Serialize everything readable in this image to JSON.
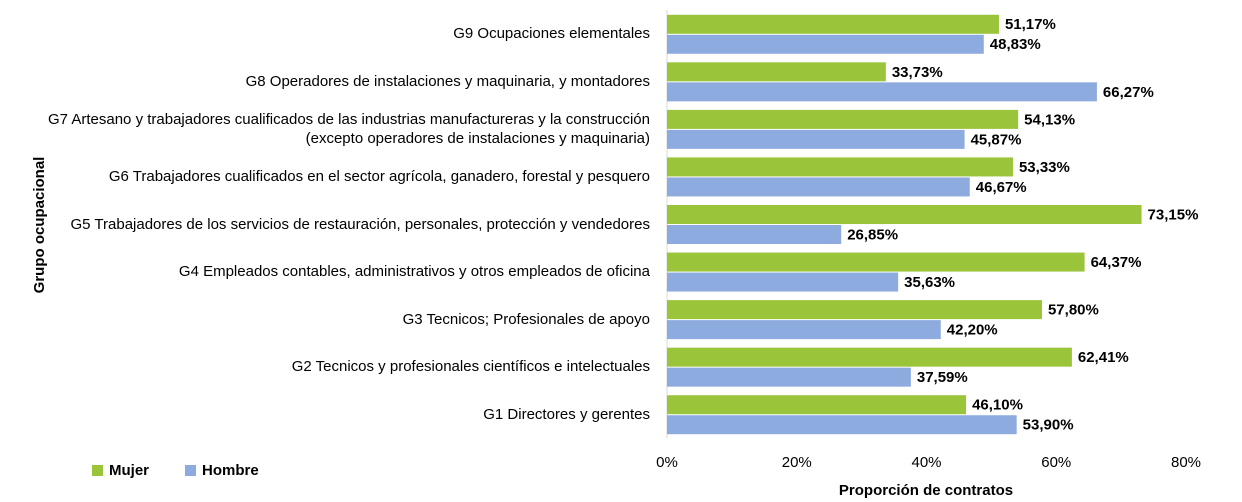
{
  "chart_data": {
    "type": "hbar",
    "categories": [
      "G9 Ocupaciones elementales",
      "G8 Operadores de instalaciones y maquinaria, y montadores",
      "G7 Artesano y trabajadores cualificados de las industrias manufactureras y la construcción (excepto operadores de instalaciones y maquinaria)",
      "G6 Trabajadores cualificados en el sector agrícola, ganadero, forestal y pesquero",
      "G5 Trabajadores de los servicios de restauración, personales, protección y vendedores",
      "G4 Empleados contables, administrativos y otros empleados de oficina",
      "G3 Tecnicos; Profesionales de apoyo",
      "G2 Tecnicos y profesionales científicos e intelectuales",
      "G1 Directores y gerentes"
    ],
    "series": [
      {
        "name": "Mujer",
        "color": "#9ac43a",
        "values": [
          51.17,
          33.73,
          54.13,
          53.33,
          73.15,
          64.37,
          57.8,
          62.41,
          46.1
        ],
        "value_labels": [
          "51,17%",
          "33,73%",
          "54,13%",
          "53,33%",
          "73,15%",
          "64,37%",
          "57,80%",
          "62,41%",
          "46,10%"
        ]
      },
      {
        "name": "Hombre",
        "color": "#8eabe0",
        "values": [
          48.83,
          66.27,
          45.87,
          46.67,
          26.85,
          35.63,
          42.2,
          37.59,
          53.9
        ],
        "value_labels": [
          "48,83%",
          "66,27%",
          "45,87%",
          "46,67%",
          "26,85%",
          "35,63%",
          "42,20%",
          "37,59%",
          "53,90%"
        ]
      }
    ],
    "xlabel": "Proporción de contratos",
    "ylabel": "Grupo ocupacional",
    "xlim": [
      0,
      80
    ],
    "xticks": [
      {
        "value": 0,
        "label": "0%"
      },
      {
        "value": 20,
        "label": "20%"
      },
      {
        "value": 40,
        "label": "40%"
      },
      {
        "value": 60,
        "label": "60%"
      },
      {
        "value": 80,
        "label": "80%"
      }
    ],
    "legend": "bottom-left"
  }
}
